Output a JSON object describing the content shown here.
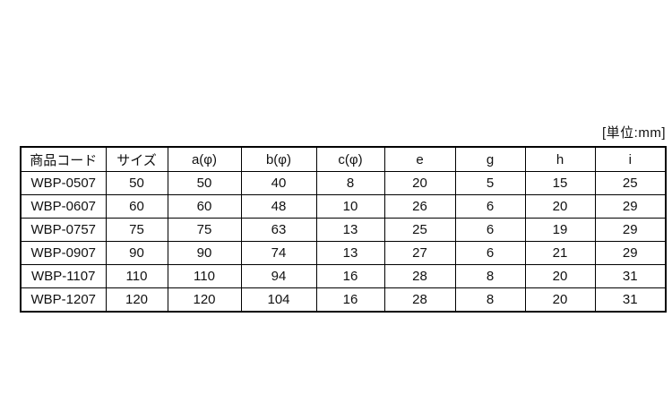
{
  "unit_label": "[単位:mm]",
  "table": {
    "columns": [
      "商品コード",
      "サイズ",
      "a(φ)",
      "b(φ)",
      "c(φ)",
      "e",
      "g",
      "h",
      "i"
    ],
    "rows": [
      [
        "WBP-0507",
        "50",
        "50",
        "40",
        "8",
        "20",
        "5",
        "15",
        "25"
      ],
      [
        "WBP-0607",
        "60",
        "60",
        "48",
        "10",
        "26",
        "6",
        "20",
        "29"
      ],
      [
        "WBP-0757",
        "75",
        "75",
        "63",
        "13",
        "25",
        "6",
        "19",
        "29"
      ],
      [
        "WBP-0907",
        "90",
        "90",
        "74",
        "13",
        "27",
        "6",
        "21",
        "29"
      ],
      [
        "WBP-1107",
        "110",
        "110",
        "94",
        "16",
        "28",
        "8",
        "20",
        "31"
      ],
      [
        "WBP-1207",
        "120",
        "120",
        "104",
        "16",
        "28",
        "8",
        "20",
        "31"
      ]
    ]
  },
  "colors": {
    "background": "#ffffff",
    "border": "#000000",
    "text": "#111111"
  }
}
